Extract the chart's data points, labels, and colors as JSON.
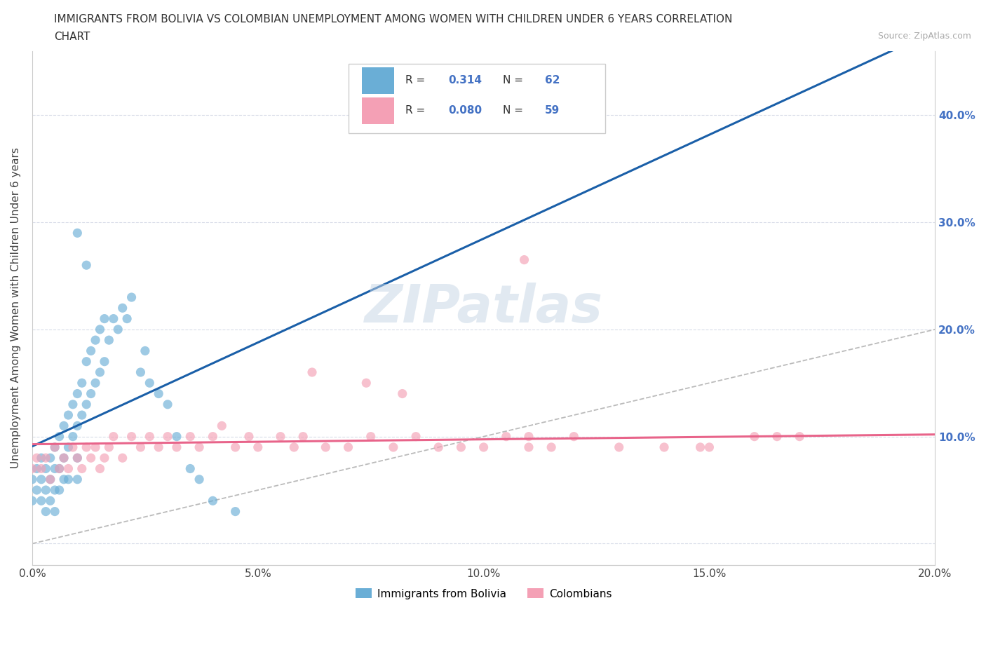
{
  "title_line1": "IMMIGRANTS FROM BOLIVIA VS COLOMBIAN UNEMPLOYMENT AMONG WOMEN WITH CHILDREN UNDER 6 YEARS CORRELATION",
  "title_line2": "CHART",
  "source": "Source: ZipAtlas.com",
  "ylabel": "Unemployment Among Women with Children Under 6 years",
  "xlim": [
    0.0,
    0.2
  ],
  "ylim": [
    -0.02,
    0.46
  ],
  "bolivia_color": "#6aaed6",
  "colombia_color": "#f4a0b5",
  "bolivia_line_color": "#1a5fa8",
  "colombia_line_color": "#e8648a",
  "diagonal_color": "#bbbbbb",
  "R_bolivia": 0.314,
  "N_bolivia": 62,
  "R_colombia": 0.08,
  "N_colombia": 59,
  "legend_label_1": "Immigrants from Bolivia",
  "legend_label_2": "Colombians",
  "watermark": "ZIPatlas",
  "accent_color": "#4472c4",
  "grid_color": "#d8dce8",
  "bolivia_x": [
    0.0,
    0.0,
    0.001,
    0.001,
    0.002,
    0.002,
    0.002,
    0.003,
    0.003,
    0.003,
    0.004,
    0.004,
    0.004,
    0.005,
    0.005,
    0.005,
    0.005,
    0.006,
    0.006,
    0.006,
    0.007,
    0.007,
    0.007,
    0.008,
    0.008,
    0.008,
    0.009,
    0.009,
    0.01,
    0.01,
    0.01,
    0.01,
    0.011,
    0.011,
    0.012,
    0.012,
    0.013,
    0.013,
    0.014,
    0.014,
    0.015,
    0.015,
    0.016,
    0.016,
    0.017,
    0.018,
    0.019,
    0.02,
    0.021,
    0.022,
    0.024,
    0.025,
    0.026,
    0.028,
    0.03,
    0.032,
    0.035,
    0.037,
    0.04,
    0.045,
    0.01,
    0.012
  ],
  "bolivia_y": [
    0.06,
    0.04,
    0.07,
    0.05,
    0.08,
    0.06,
    0.04,
    0.07,
    0.05,
    0.03,
    0.08,
    0.06,
    0.04,
    0.09,
    0.07,
    0.05,
    0.03,
    0.1,
    0.07,
    0.05,
    0.11,
    0.08,
    0.06,
    0.12,
    0.09,
    0.06,
    0.13,
    0.1,
    0.14,
    0.11,
    0.08,
    0.06,
    0.15,
    0.12,
    0.17,
    0.13,
    0.18,
    0.14,
    0.19,
    0.15,
    0.2,
    0.16,
    0.21,
    0.17,
    0.19,
    0.21,
    0.2,
    0.22,
    0.21,
    0.23,
    0.16,
    0.18,
    0.15,
    0.14,
    0.13,
    0.1,
    0.07,
    0.06,
    0.04,
    0.03,
    0.29,
    0.26
  ],
  "colombia_x": [
    0.0,
    0.001,
    0.002,
    0.003,
    0.004,
    0.005,
    0.006,
    0.007,
    0.008,
    0.009,
    0.01,
    0.011,
    0.012,
    0.013,
    0.014,
    0.015,
    0.016,
    0.017,
    0.018,
    0.02,
    0.022,
    0.024,
    0.026,
    0.028,
    0.03,
    0.032,
    0.035,
    0.037,
    0.04,
    0.042,
    0.045,
    0.048,
    0.05,
    0.055,
    0.058,
    0.06,
    0.065,
    0.07,
    0.075,
    0.08,
    0.085,
    0.09,
    0.095,
    0.1,
    0.105,
    0.11,
    0.115,
    0.12,
    0.13,
    0.14,
    0.15,
    0.16,
    0.17,
    0.062,
    0.074,
    0.082,
    0.11,
    0.148,
    0.165
  ],
  "colombia_y": [
    0.07,
    0.08,
    0.07,
    0.08,
    0.06,
    0.09,
    0.07,
    0.08,
    0.07,
    0.09,
    0.08,
    0.07,
    0.09,
    0.08,
    0.09,
    0.07,
    0.08,
    0.09,
    0.1,
    0.08,
    0.1,
    0.09,
    0.1,
    0.09,
    0.1,
    0.09,
    0.1,
    0.09,
    0.1,
    0.11,
    0.09,
    0.1,
    0.09,
    0.1,
    0.09,
    0.1,
    0.09,
    0.09,
    0.1,
    0.09,
    0.1,
    0.09,
    0.09,
    0.09,
    0.1,
    0.09,
    0.09,
    0.1,
    0.09,
    0.09,
    0.09,
    0.1,
    0.1,
    0.16,
    0.15,
    0.14,
    0.1,
    0.09,
    0.1
  ]
}
